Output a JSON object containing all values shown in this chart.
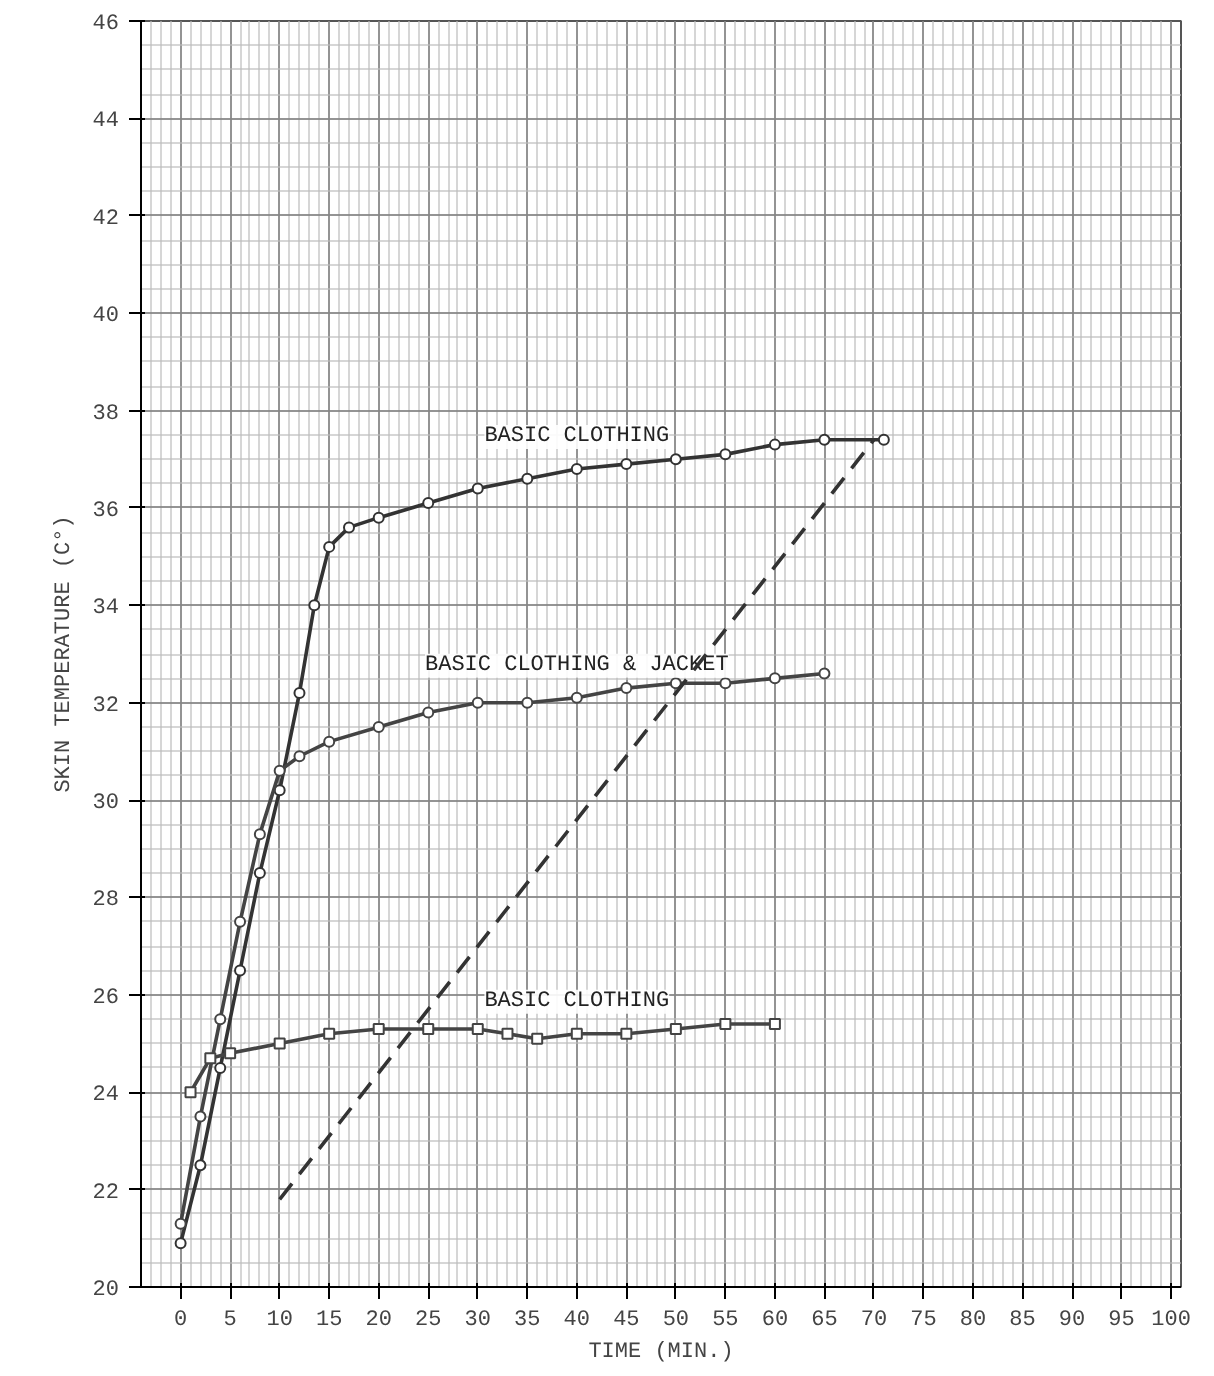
{
  "chart_data": {
    "type": "line",
    "xlabel": "TIME (MIN.)",
    "ylabel": "SKIN TEMPERATURE (C°)",
    "xlim": [
      -4,
      101
    ],
    "ylim": [
      20,
      46
    ],
    "xticks": [
      0,
      5,
      10,
      15,
      20,
      25,
      30,
      35,
      40,
      45,
      50,
      55,
      60,
      65,
      70,
      75,
      80,
      85,
      90,
      95,
      100
    ],
    "yticks": [
      20,
      22,
      24,
      26,
      28,
      30,
      32,
      34,
      36,
      38,
      40,
      42,
      44,
      46
    ],
    "grid": true,
    "series": [
      {
        "name": "BASIC CLOTHING",
        "color": "#333333",
        "marker": "circle",
        "x": [
          0,
          2,
          4,
          6,
          8,
          10,
          12,
          13.5,
          15,
          17,
          20,
          25,
          30,
          35,
          40,
          45,
          50,
          55,
          60,
          65,
          71
        ],
        "values": [
          20.9,
          22.5,
          24.5,
          26.5,
          28.5,
          30.2,
          32.2,
          34,
          35.2,
          35.6,
          35.8,
          36.1,
          36.4,
          36.6,
          36.8,
          36.9,
          37.0,
          37.1,
          37.3,
          37.4,
          37.4
        ]
      },
      {
        "name": "BASIC CLOTHING & JACKET",
        "color": "#444444",
        "marker": "circle",
        "x": [
          0,
          2,
          4,
          6,
          8,
          10,
          12,
          15,
          20,
          25,
          30,
          35,
          40,
          45,
          50,
          55,
          60,
          65
        ],
        "values": [
          21.3,
          23.5,
          25.5,
          27.5,
          29.3,
          30.6,
          30.9,
          31.2,
          31.5,
          31.8,
          32.0,
          32.0,
          32.1,
          32.3,
          32.4,
          32.4,
          32.5,
          32.6
        ]
      },
      {
        "name": "BASIC CLOTHING",
        "color": "#444444",
        "marker": "square",
        "x": [
          1,
          3,
          5,
          10,
          15,
          20,
          25,
          30,
          33,
          36,
          40,
          45,
          50,
          55,
          60
        ],
        "values": [
          24.0,
          24.7,
          24.8,
          25.0,
          25.2,
          25.3,
          25.3,
          25.3,
          25.2,
          25.1,
          25.2,
          25.2,
          25.3,
          25.4,
          25.4
        ]
      },
      {
        "color": "#333333",
        "marker": "none",
        "line_style": "dashed",
        "x": [
          10,
          70
        ],
        "values": [
          21.8,
          37.4
        ]
      }
    ]
  }
}
